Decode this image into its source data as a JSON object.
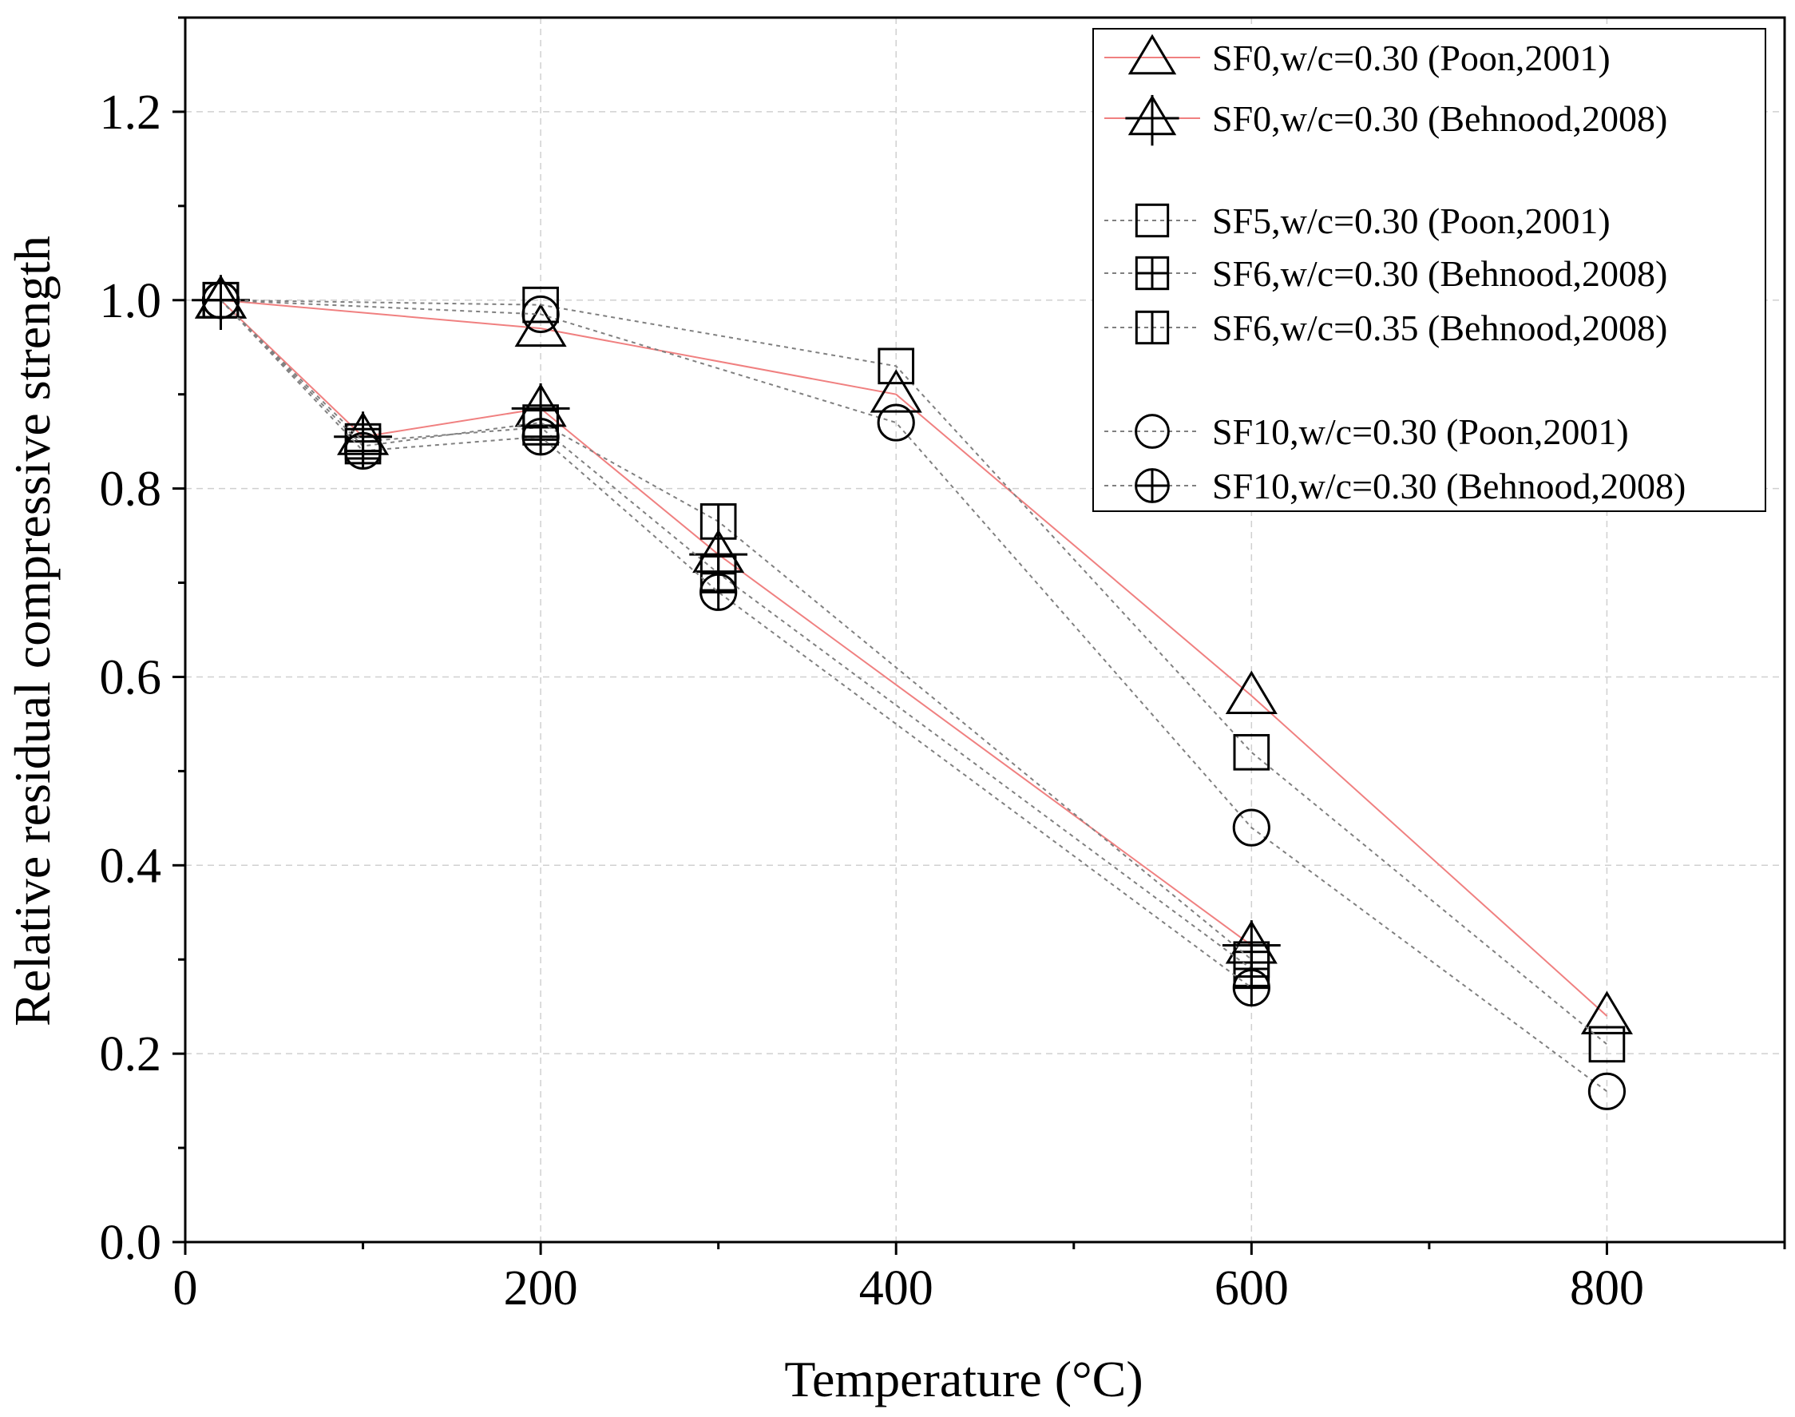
{
  "chart_data": {
    "type": "line",
    "title": "",
    "xlabel": "Temperature (°C)",
    "ylabel": "Relative residual compressive strength",
    "xlim": [
      0,
      900
    ],
    "ylim": [
      0,
      1.3
    ],
    "xticks": [
      0,
      200,
      400,
      600,
      800
    ],
    "xtick_labels": [
      "0",
      "200",
      "400",
      "600",
      "800"
    ],
    "yticks": [
      0.0,
      0.2,
      0.4,
      0.6,
      0.8,
      1.0,
      1.2
    ],
    "ytick_labels": [
      "0.0",
      "0.2",
      "0.4",
      "0.6",
      "0.8",
      "1.0",
      "1.2"
    ],
    "grid": true,
    "legend_position": "top-right",
    "series": [
      {
        "name": "SF0,w/c=0.30 (Poon,2001)",
        "marker": "triangle",
        "line": "red-solid",
        "color": "#f08080",
        "x": [
          20,
          200,
          400,
          600,
          800
        ],
        "y": [
          1.0,
          0.97,
          0.9,
          0.58,
          0.24
        ]
      },
      {
        "name": "SF0,w/c=0.30 (Behnood,2008)",
        "marker": "triangle-plus",
        "line": "red-solid",
        "color": "#f08080",
        "x": [
          20,
          100,
          200,
          300,
          600
        ],
        "y": [
          1.0,
          0.855,
          0.885,
          0.73,
          0.315
        ]
      },
      {
        "name": "SF5,w/c=0.30 (Poon,2001)",
        "marker": "square",
        "line": "gray-dashed",
        "color": "#808080",
        "x": [
          20,
          200,
          400,
          600,
          800
        ],
        "y": [
          1.0,
          0.995,
          0.93,
          0.52,
          0.21
        ]
      },
      {
        "name": "SF6,w/c=0.30 (Behnood,2008)",
        "marker": "square-plus",
        "line": "gray-dashed",
        "color": "#808080",
        "x": [
          20,
          100,
          200,
          300,
          600
        ],
        "y": [
          1.0,
          0.85,
          0.865,
          0.71,
          0.29
        ]
      },
      {
        "name": "SF6,w/c=0.35 (Behnood,2008)",
        "marker": "square-vline",
        "line": "gray-dashed",
        "color": "#808080",
        "x": [
          20,
          100,
          200,
          300,
          600
        ],
        "y": [
          1.0,
          0.845,
          0.87,
          0.765,
          0.3
        ]
      },
      {
        "name": "SF10,w/c=0.30 (Poon,2001)",
        "marker": "circle",
        "line": "gray-dashed",
        "color": "#808080",
        "x": [
          20,
          200,
          400,
          600,
          800
        ],
        "y": [
          1.0,
          0.985,
          0.87,
          0.44,
          0.16
        ]
      },
      {
        "name": "SF10,w/c=0.30 (Behnood,2008)",
        "marker": "circle-plus",
        "line": "gray-dashed",
        "color": "#808080",
        "x": [
          20,
          100,
          200,
          300,
          600
        ],
        "y": [
          1.0,
          0.84,
          0.855,
          0.69,
          0.27
        ]
      }
    ]
  }
}
